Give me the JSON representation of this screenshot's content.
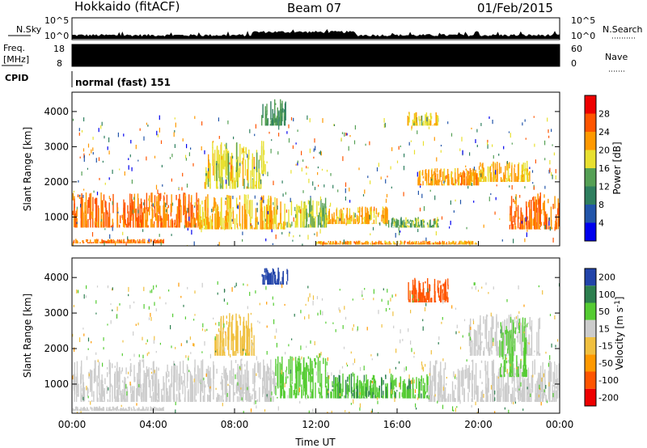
{
  "header": {
    "station": "Hokkaido (fitACF)",
    "beam": "Beam 07",
    "date": "01/Feb/2015"
  },
  "panels": {
    "nsky": {
      "label": "N.Sky",
      "tick_top": "10^5",
      "tick_bottom": "10^0"
    },
    "nsearch": {
      "label": "N.Search",
      "tick_top": "10^5",
      "tick_bottom": "10^0"
    },
    "freq": {
      "label_line1": "Freq.",
      "label_line2": "[MHz]",
      "tick_top": "18",
      "tick_bottom": "8"
    },
    "nave": {
      "label": "Nave",
      "tick_top": "60",
      "tick_bottom": "0"
    },
    "cpid": {
      "label": "CPID",
      "value": "normal (fast) 151"
    }
  },
  "colors": {
    "power": [
      "#0000ee",
      "#2255aa",
      "#2f7f5f",
      "#55a055",
      "#e8e030",
      "#ff9900",
      "#ff5500",
      "#ee0000"
    ],
    "velocity": [
      "#ee0000",
      "#ff5500",
      "#ff9900",
      "#f0c040",
      "#cccccc",
      "#55cc33",
      "#2d7f4f",
      "#2244aa"
    ]
  },
  "chart_data": [
    {
      "type": "heatmap",
      "name": "power",
      "ylabel": "Slant Range [km]",
      "yticks": [
        1000,
        2000,
        3000,
        4000
      ],
      "ylim": [
        180,
        4550
      ],
      "xlim": [
        0,
        24
      ],
      "colorbar": {
        "label": "Power [dB]",
        "ticks": [
          "4",
          "8",
          "12",
          "16",
          "20",
          "24",
          "28"
        ]
      },
      "bands": [
        {
          "t0": 0,
          "t1": 6.2,
          "r0": 700,
          "r1": 1700,
          "value": 27
        },
        {
          "t0": 6.2,
          "t1": 10.5,
          "r0": 650,
          "r1": 1650,
          "value": 22
        },
        {
          "t0": 10.5,
          "t1": 12.5,
          "r0": 700,
          "r1": 1550,
          "value": 18
        },
        {
          "t0": 12.5,
          "t1": 15.5,
          "r0": 800,
          "r1": 1300,
          "value": 23
        },
        {
          "t0": 15.5,
          "t1": 18.0,
          "r0": 700,
          "r1": 1000,
          "value": 16
        },
        {
          "t0": 21.5,
          "t1": 24,
          "r0": 650,
          "r1": 1700,
          "value": 27
        },
        {
          "t0": 17.0,
          "t1": 20.0,
          "r0": 1900,
          "r1": 2400,
          "value": 24
        },
        {
          "t0": 20.0,
          "t1": 22.5,
          "r0": 2000,
          "r1": 2600,
          "value": 22
        },
        {
          "t0": 0,
          "t1": 4.5,
          "r0": 250,
          "r1": 380,
          "value": 26
        },
        {
          "t0": 12.0,
          "t1": 20.0,
          "r0": 220,
          "r1": 330,
          "value": 24
        },
        {
          "t0": 6.5,
          "t1": 9.5,
          "r0": 1800,
          "r1": 3200,
          "value": 20
        },
        {
          "t0": 9.3,
          "t1": 10.5,
          "r0": 3600,
          "r1": 4400,
          "value": 14
        },
        {
          "t0": 16.5,
          "t1": 18.0,
          "r0": 3600,
          "r1": 4000,
          "value": 20
        }
      ]
    },
    {
      "type": "heatmap",
      "name": "velocity",
      "ylabel": "Slant Range [km]",
      "xlabel": "Time UT",
      "yticks": [
        1000,
        2000,
        3000,
        4000
      ],
      "ylim": [
        180,
        4550
      ],
      "xlim": [
        0,
        24
      ],
      "xticks": [
        "00:00",
        "04:00",
        "08:00",
        "12:00",
        "16:00",
        "20:00",
        "00:00"
      ],
      "colorbar": {
        "label_main": "Velocity [m s",
        "label_sup": "-1",
        "label_end": "]",
        "ticks": [
          "200",
          "100",
          "50",
          "15",
          "-15",
          "-50",
          "-100",
          "-200"
        ]
      },
      "bands": [
        {
          "t0": 0,
          "t1": 10.0,
          "r0": 500,
          "r1": 1700,
          "value": 0
        },
        {
          "t0": 10.0,
          "t1": 12.5,
          "r0": 600,
          "r1": 1800,
          "value": 30
        },
        {
          "t0": 12.5,
          "t1": 17.5,
          "r0": 600,
          "r1": 1300,
          "value": 45
        },
        {
          "t0": 17.5,
          "t1": 24,
          "r0": 500,
          "r1": 1700,
          "value": 0
        },
        {
          "t0": 19.5,
          "t1": 23.0,
          "r0": 1800,
          "r1": 3000,
          "value": 0
        },
        {
          "t0": 21.0,
          "t1": 22.5,
          "r0": 1200,
          "r1": 2900,
          "value": 40
        },
        {
          "t0": 9.3,
          "t1": 10.6,
          "r0": 3800,
          "r1": 4300,
          "value": 220
        },
        {
          "t0": 16.5,
          "t1": 18.5,
          "r0": 3300,
          "r1": 4000,
          "value": -120
        },
        {
          "t0": 7.0,
          "t1": 9.0,
          "r0": 1800,
          "r1": 3000,
          "value": -30
        },
        {
          "t0": 0,
          "t1": 4.5,
          "r0": 250,
          "r1": 380,
          "value": 0
        }
      ]
    }
  ]
}
